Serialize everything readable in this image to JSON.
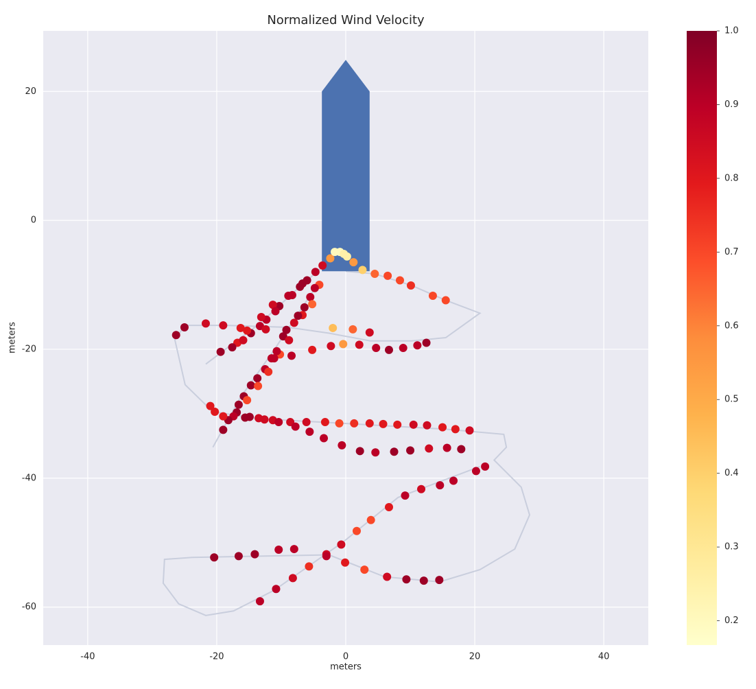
{
  "chart_data": {
    "type": "scatter",
    "title": "Normalized Wind Velocity",
    "xlabel": "meters",
    "ylabel": "meters",
    "xlim": [
      -46.9,
      46.9
    ],
    "ylim": [
      -65.9,
      29.4
    ],
    "xticks": [
      -40,
      -20,
      0,
      20,
      40
    ],
    "yticks": [
      -60,
      -40,
      -20,
      0,
      20
    ],
    "grid": true,
    "x": [
      -3.6,
      -4.7,
      -6.0,
      -6.7,
      -7.1,
      -4.1,
      -4.8,
      -5.5,
      -5.2,
      -6.4,
      -6.7,
      -7.4,
      -8.3,
      -8.9,
      -10.3,
      -11.3,
      -10.9,
      -12.3,
      -13.3,
      -14.7,
      -13.1,
      -12.4,
      -16.3,
      -15.3,
      -16.8,
      -17.6,
      -19.4,
      -19.0,
      -21.7,
      -25.0,
      -26.3,
      -15.9,
      -8.0,
      -9.2,
      -9.7,
      -8.8,
      -10.2,
      -10.7,
      -11.1,
      -11.5,
      -12.5,
      -12.0,
      -13.7,
      -14.7,
      -13.6,
      -15.8,
      -15.3,
      -16.6,
      -16.9,
      -17.4,
      -18.2,
      -19.0,
      -2.0,
      1.1,
      3.7,
      -0.4,
      2.1,
      4.7,
      6.7,
      8.9,
      11.1,
      12.5,
      -2.3,
      -5.2,
      -8.4,
      -21.0,
      -20.3,
      -19.0,
      -15.6,
      -14.9,
      -13.5,
      -12.6,
      -11.3,
      -10.4,
      -8.6,
      -7.8,
      -6.1,
      -3.2,
      -1.0,
      1.3,
      3.7,
      5.8,
      8.0,
      10.5,
      12.6,
      15.0,
      17.0,
      19.2,
      -5.6,
      -3.4,
      -0.6,
      2.2,
      4.6,
      7.5,
      10.0,
      12.9,
      15.7,
      17.9,
      21.6,
      20.2,
      16.7,
      14.6,
      11.7,
      9.2,
      6.7,
      3.9,
      1.7,
      -0.7,
      -3.0,
      -5.7,
      -8.2,
      -10.8,
      -13.3,
      -20.4,
      -16.6,
      -14.1,
      -10.4,
      -8.0,
      -3.0,
      -0.1,
      2.9,
      6.4,
      9.4,
      12.1,
      14.5,
      -2.4,
      -1.7,
      -0.9,
      -0.3,
      0.2,
      1.2,
      2.6,
      4.5,
      6.5,
      8.4,
      10.1,
      13.5,
      15.5
    ],
    "y": [
      -7.0,
      -8.0,
      -9.3,
      -9.8,
      -10.3,
      -10.0,
      -10.5,
      -11.9,
      -13.0,
      -13.5,
      -14.7,
      -14.8,
      -11.6,
      -11.7,
      -13.3,
      -13.1,
      -14.1,
      -15.4,
      -16.4,
      -17.5,
      -15.0,
      -16.9,
      -16.7,
      -17.1,
      -19.0,
      -19.7,
      -20.4,
      -16.3,
      -16.0,
      -16.6,
      -17.8,
      -18.6,
      -15.9,
      -17.0,
      -18.0,
      -18.6,
      -20.8,
      -20.3,
      -21.4,
      -21.4,
      -23.1,
      -23.5,
      -24.5,
      -25.6,
      -25.7,
      -27.3,
      -27.9,
      -28.6,
      -29.8,
      -30.4,
      -31.0,
      -32.5,
      -16.7,
      -16.9,
      -17.4,
      -19.2,
      -19.3,
      -19.8,
      -20.1,
      -19.8,
      -19.4,
      -19.0,
      -19.5,
      -20.1,
      -21.0,
      -28.8,
      -29.7,
      -30.4,
      -30.6,
      -30.5,
      -30.7,
      -30.9,
      -31.0,
      -31.3,
      -31.3,
      -32.0,
      -31.3,
      -31.3,
      -31.5,
      -31.5,
      -31.5,
      -31.6,
      -31.7,
      -31.7,
      -31.8,
      -32.1,
      -32.4,
      -32.6,
      -32.8,
      -33.8,
      -34.9,
      -35.8,
      -36.0,
      -35.9,
      -35.7,
      -35.4,
      -35.3,
      -35.5,
      -38.2,
      -38.9,
      -40.4,
      -41.1,
      -41.7,
      -42.7,
      -44.5,
      -46.5,
      -48.2,
      -50.3,
      -51.8,
      -53.7,
      -55.5,
      -57.2,
      -59.1,
      -52.3,
      -52.1,
      -51.8,
      -51.1,
      -51.0,
      -52.1,
      -53.1,
      -54.2,
      -55.3,
      -55.7,
      -55.9,
      -55.8,
      -5.9,
      -4.9,
      -4.9,
      -5.2,
      -5.6,
      -6.5,
      -7.7,
      -8.3,
      -8.6,
      -9.3,
      -10.1,
      -11.7,
      -12.4
    ],
    "c": [
      0.85,
      0.9,
      0.95,
      0.95,
      0.95,
      0.7,
      0.9,
      0.9,
      0.65,
      0.95,
      0.8,
      0.95,
      0.9,
      0.9,
      0.95,
      0.85,
      0.9,
      0.9,
      0.9,
      0.95,
      0.85,
      0.85,
      0.8,
      0.8,
      0.8,
      0.95,
      0.95,
      0.85,
      0.85,
      0.95,
      0.95,
      0.85,
      0.85,
      0.95,
      0.95,
      0.85,
      0.7,
      0.9,
      0.9,
      0.9,
      0.9,
      0.75,
      0.95,
      0.95,
      0.7,
      0.95,
      0.7,
      0.95,
      0.95,
      0.9,
      0.95,
      0.95,
      0.45,
      0.65,
      0.85,
      0.55,
      0.85,
      0.9,
      0.95,
      0.9,
      0.9,
      0.95,
      0.85,
      0.8,
      0.9,
      0.8,
      0.8,
      0.8,
      0.95,
      0.95,
      0.85,
      0.85,
      0.85,
      0.9,
      0.85,
      0.9,
      0.85,
      0.8,
      0.7,
      0.75,
      0.8,
      0.8,
      0.8,
      0.85,
      0.85,
      0.8,
      0.8,
      0.85,
      0.9,
      0.9,
      0.9,
      0.95,
      0.9,
      0.95,
      0.95,
      0.85,
      0.9,
      0.95,
      0.9,
      0.9,
      0.9,
      0.9,
      0.85,
      0.9,
      0.8,
      0.7,
      0.7,
      0.85,
      0.85,
      0.75,
      0.85,
      0.9,
      0.9,
      0.95,
      0.95,
      0.95,
      0.9,
      0.9,
      0.9,
      0.8,
      0.7,
      0.85,
      0.95,
      0.95,
      0.95,
      0.55,
      0.2,
      0.2,
      0.25,
      0.25,
      0.55,
      0.4,
      0.65,
      0.7,
      0.7,
      0.75,
      0.7,
      0.7
    ],
    "trajectory": {
      "color": "#c9cedd",
      "x": [
        0,
        4.5,
        10.2,
        15.5,
        20.8,
        15.5,
        10.2,
        3.8,
        -2.6,
        -8.9,
        -18.5,
        -24.9,
        -26.5,
        -24.9,
        -20.6,
        -13.2,
        -0.4,
        15.5,
        24.5,
        24.9,
        23.0,
        27.2,
        28.5,
        26.2,
        20.8,
        14.5,
        6.0,
        -2.6,
        -13.2,
        -23.8,
        -28.1,
        -28.3,
        -25.9,
        -21.7,
        -17.4,
        -11.1,
        -0.4,
        8.1,
        20.8,
        null,
        -3.1,
        -6.8,
        -13.2,
        -21.7,
        null,
        -4.1,
        -11.1,
        -16.4,
        -20.6
      ],
      "y": [
        -7.9,
        -8.3,
        -10.1,
        -12.4,
        -14.4,
        -18.2,
        -18.7,
        -18.7,
        -17.5,
        -16.6,
        -16.3,
        -16.3,
        -18.5,
        -25.5,
        -29.7,
        -30.8,
        -31.5,
        -32.4,
        -33.2,
        -35.2,
        -37.2,
        -41.4,
        -45.7,
        -51.0,
        -54.2,
        -56.1,
        -55.3,
        -51.9,
        -52.1,
        -52.3,
        -52.6,
        -56.3,
        -59.5,
        -61.3,
        -60.6,
        -57.4,
        -49.9,
        -43.0,
        -38.2,
        null,
        -6.8,
        -10.0,
        -15.9,
        -22.3,
        null,
        -9.5,
        -20.1,
        -27.6,
        -35.2
      ]
    },
    "arrow": {
      "color": "#4c72b0",
      "x": [
        -3.7,
        0,
        3.7,
        3.7,
        -3.7
      ],
      "y": [
        20,
        24.9,
        20,
        -7.9,
        -7.9
      ]
    },
    "colorbar": {
      "lim": [
        0.167,
        1.0
      ],
      "ticks": [
        0.2,
        0.3,
        0.4,
        0.5,
        0.6,
        0.7,
        0.8,
        0.9,
        {
          "value": 1.0,
          "label": "1.0"
        }
      ],
      "colormap": [
        "#ffffcc",
        "#ffeda0",
        "#fed976",
        "#feb24c",
        "#fd8d3c",
        "#fc4e2a",
        "#e31a1c",
        "#bd0026",
        "#800026"
      ]
    }
  }
}
